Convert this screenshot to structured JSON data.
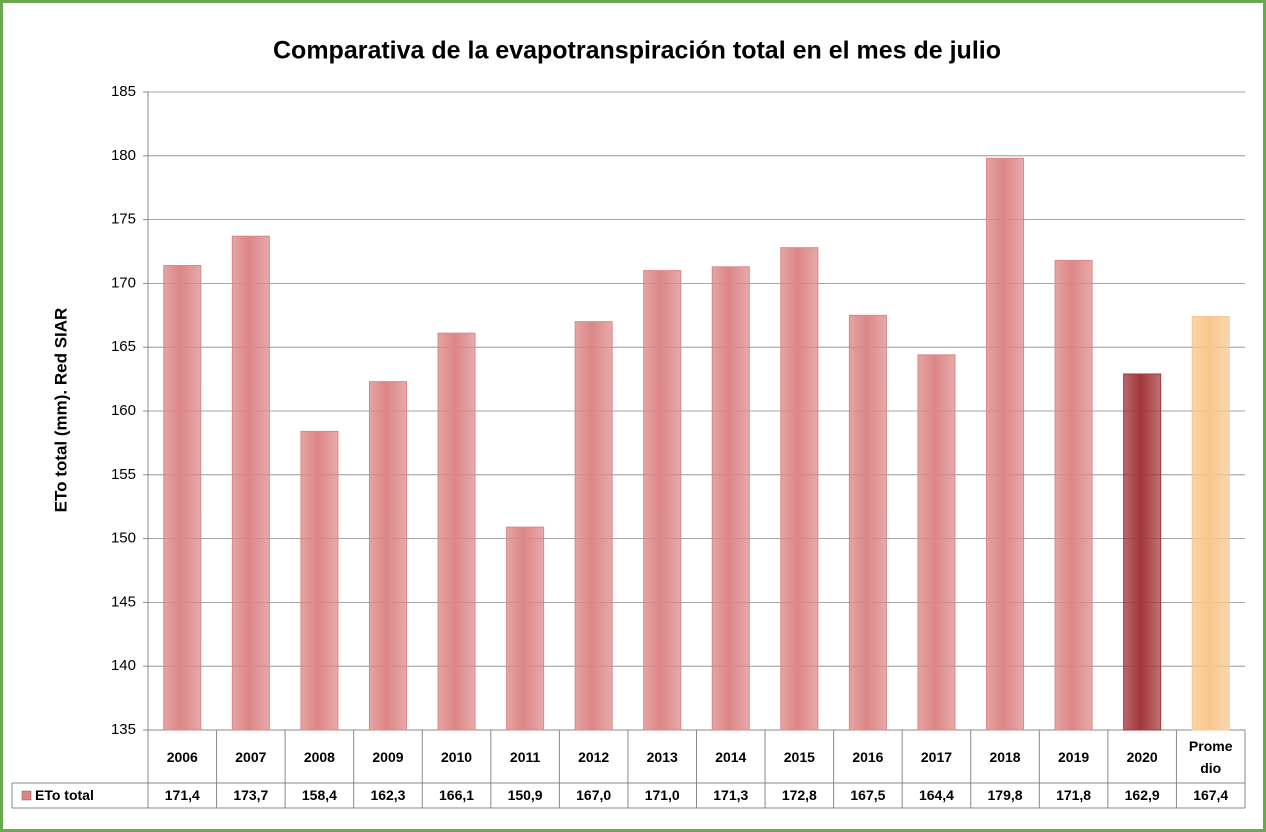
{
  "chart_data": {
    "type": "bar",
    "title": "Comparativa de la evapotranspiración total en el mes de  julio",
    "y_label": "ETo total (mm). Red SIAR",
    "categories": [
      "2006",
      "2007",
      "2008",
      "2009",
      "2010",
      "2011",
      "2012",
      "2013",
      "2014",
      "2015",
      "2016",
      "2017",
      "2018",
      "2019",
      "2020",
      "Promedio"
    ],
    "series": [
      {
        "name": "ETo total",
        "color": "#dc8686",
        "colors": [
          "#dc8686",
          "#dc8686",
          "#dc8686",
          "#dc8686",
          "#dc8686",
          "#dc8686",
          "#dc8686",
          "#dc8686",
          "#dc8686",
          "#dc8686",
          "#dc8686",
          "#dc8686",
          "#dc8686",
          "#dc8686",
          "#a2363a",
          "#f8c68c"
        ],
        "values": [
          171.4,
          173.7,
          158.4,
          162.3,
          166.1,
          150.9,
          167.0,
          171.0,
          171.3,
          172.8,
          167.5,
          164.4,
          179.8,
          171.8,
          162.9,
          167.4
        ],
        "value_labels": [
          "171,4",
          "173,7",
          "158,4",
          "162,3",
          "166,1",
          "150,9",
          "167,0",
          "171,0",
          "171,3",
          "172,8",
          "167,5",
          "164,4",
          "179,8",
          "171,8",
          "162,9",
          "167,4"
        ]
      }
    ],
    "ylim": [
      135,
      185
    ],
    "yticks": [
      135,
      140,
      145,
      150,
      155,
      160,
      165,
      170,
      175,
      180,
      185
    ],
    "grid": true
  }
}
